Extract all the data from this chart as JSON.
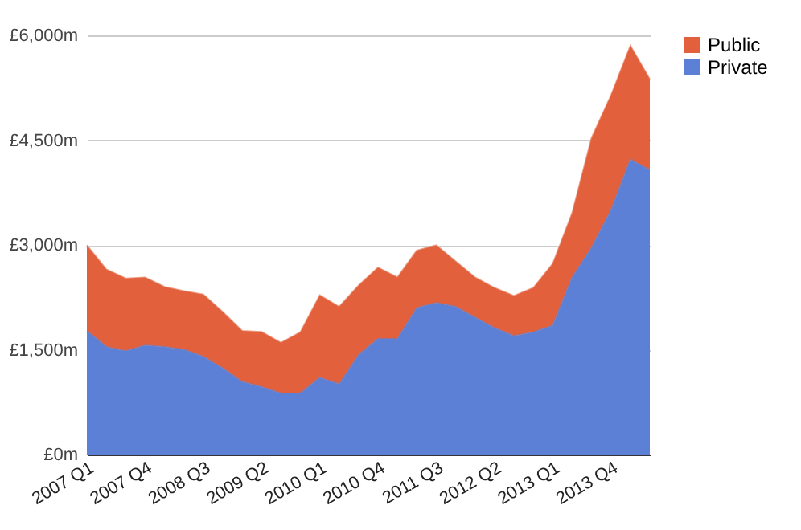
{
  "chart_data": {
    "type": "area",
    "stacked": true,
    "categories": [
      "2007 Q1",
      null,
      null,
      "2007 Q4",
      null,
      null,
      "2008 Q3",
      null,
      null,
      "2009 Q2",
      null,
      null,
      "2010 Q1",
      null,
      null,
      "2010 Q4",
      null,
      null,
      "2011 Q3",
      null,
      null,
      "2012 Q2",
      null,
      null,
      "2013 Q1",
      null,
      null,
      "2013 Q4",
      null,
      null
    ],
    "series": [
      {
        "name": "Private",
        "color": "#5b80d6",
        "values": [
          1770,
          1540,
          1480,
          1560,
          1540,
          1500,
          1400,
          1235,
          1040,
          965,
          875,
          875,
          1100,
          1005,
          1425,
          1655,
          1655,
          2100,
          2170,
          2115,
          1960,
          1810,
          1695,
          1750,
          1845,
          2535,
          2960,
          3495,
          4220,
          4070
        ]
      },
      {
        "name": "Public",
        "color": "#e2613c",
        "values": [
          1225,
          1110,
          1040,
          975,
          860,
          840,
          890,
          805,
          730,
          790,
          725,
          875,
          1180,
          1110,
          995,
          1020,
          880,
          820,
          825,
          650,
          575,
          575,
          575,
          635,
          885,
          920,
          1570,
          1645,
          1630,
          1300
        ]
      }
    ],
    "ylim": [
      0,
      6000
    ],
    "yticks": [
      {
        "value": 0,
        "label": "£0m"
      },
      {
        "value": 1500,
        "label": "£1,500m"
      },
      {
        "value": 3000,
        "label": "£3,000m"
      },
      {
        "value": 4500,
        "label": "£4,500m"
      },
      {
        "value": 6000,
        "label": "£6,000m"
      }
    ],
    "grid": "y",
    "legend": "top right"
  }
}
